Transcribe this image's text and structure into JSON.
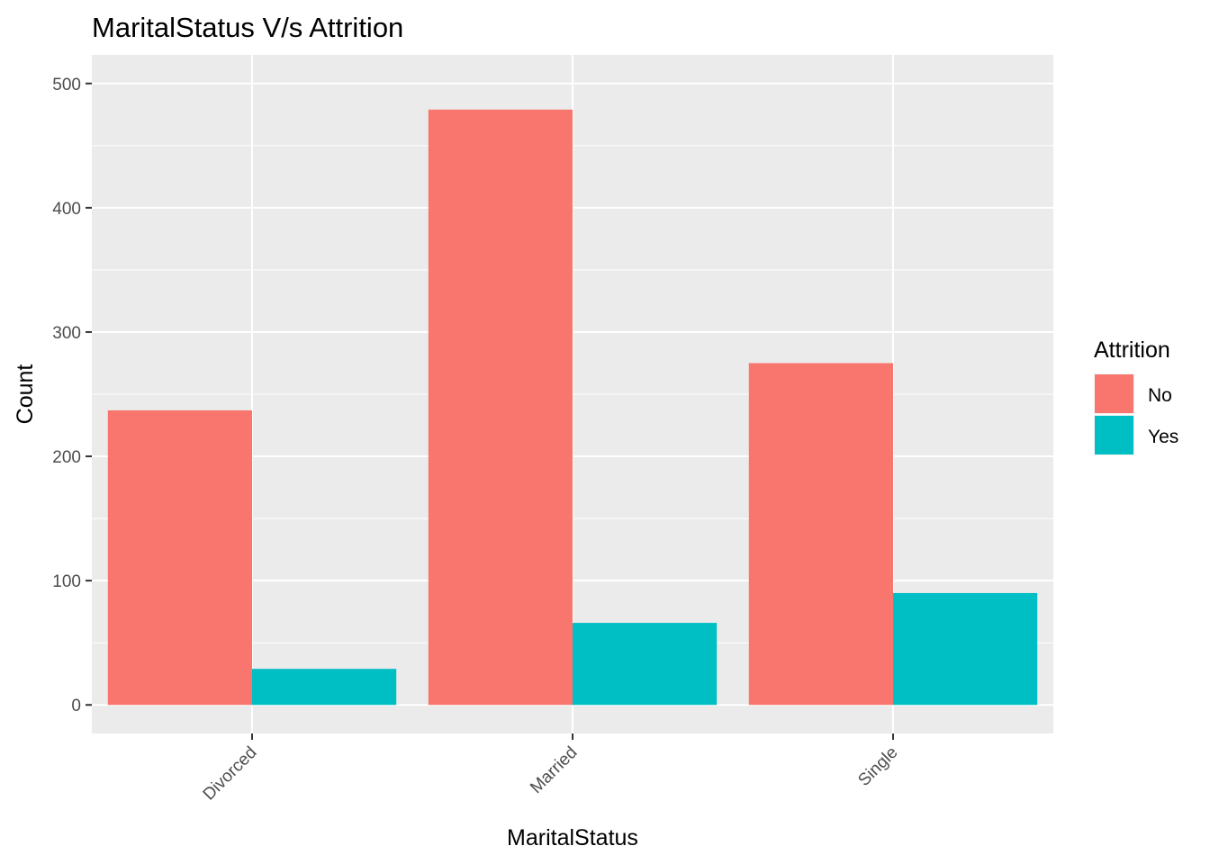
{
  "chart_data": {
    "type": "bar",
    "title": "MaritalStatus V/s Attrition",
    "xlabel": "MaritalStatus",
    "ylabel": "Count",
    "categories": [
      "Divorced",
      "Married",
      "Single"
    ],
    "series": [
      {
        "name": "No",
        "values": [
          237,
          479,
          275
        ],
        "color": "#F8766D"
      },
      {
        "name": "Yes",
        "values": [
          29,
          66,
          90
        ],
        "color": "#00BFC4"
      }
    ],
    "ylim": [
      -23,
      523
    ],
    "yticks": [
      0,
      100,
      200,
      300,
      400,
      500
    ],
    "ytick_labels": [
      "0",
      "100",
      "200",
      "300",
      "400",
      "500"
    ],
    "legend_title": "Attrition",
    "legend_position": "right",
    "grid": true,
    "panel_background": "#EBEBEB"
  }
}
